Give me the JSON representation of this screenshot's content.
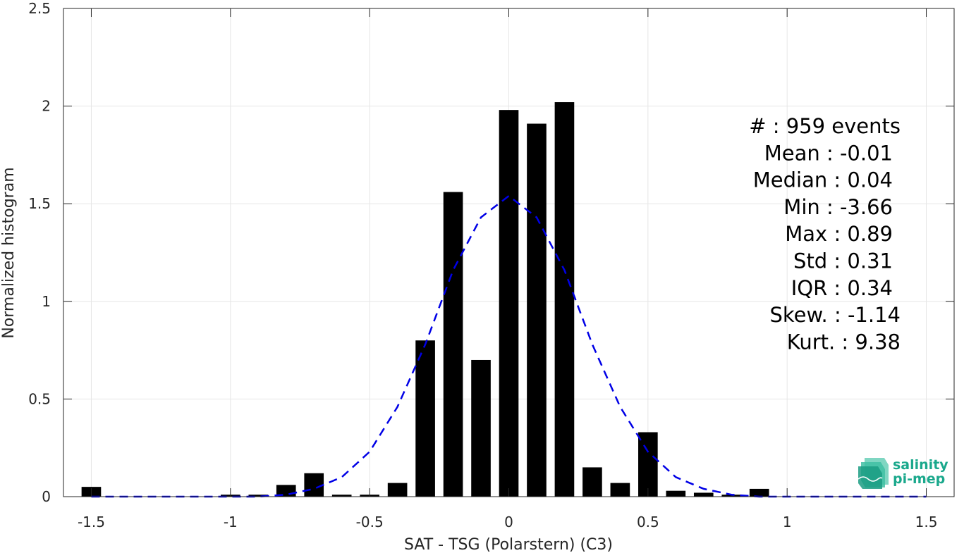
{
  "chart_data": {
    "type": "bar",
    "xlabel": "SAT - TSG (Polarstern) (C3)",
    "ylabel": "Normalized histogram",
    "xlim": [
      -1.6,
      1.6
    ],
    "ylim": [
      0,
      2.5
    ],
    "xticks": [
      -1.5,
      -1,
      -0.5,
      0,
      0.5,
      1,
      1.5
    ],
    "xtick_labels": [
      "-1.5",
      "-1",
      "-0.5",
      "0",
      "0.5",
      "1",
      "1.5"
    ],
    "yticks": [
      0,
      0.5,
      1,
      1.5,
      2,
      2.5
    ],
    "ytick_labels": [
      "0",
      "0.5",
      "1",
      "1.5",
      "2",
      "2.5"
    ],
    "grid": true,
    "bar_width": 0.07,
    "bars": [
      {
        "x": -1.5,
        "y": 0.05
      },
      {
        "x": -1.0,
        "y": 0.01
      },
      {
        "x": -0.9,
        "y": 0.01
      },
      {
        "x": -0.8,
        "y": 0.06
      },
      {
        "x": -0.7,
        "y": 0.12
      },
      {
        "x": -0.6,
        "y": 0.01
      },
      {
        "x": -0.5,
        "y": 0.01
      },
      {
        "x": -0.4,
        "y": 0.07
      },
      {
        "x": -0.3,
        "y": 0.8
      },
      {
        "x": -0.2,
        "y": 1.56
      },
      {
        "x": -0.1,
        "y": 0.7
      },
      {
        "x": 0.0,
        "y": 1.98
      },
      {
        "x": 0.1,
        "y": 1.91
      },
      {
        "x": 0.2,
        "y": 2.02
      },
      {
        "x": 0.3,
        "y": 0.15
      },
      {
        "x": 0.4,
        "y": 0.07
      },
      {
        "x": 0.5,
        "y": 0.33
      },
      {
        "x": 0.6,
        "y": 0.03
      },
      {
        "x": 0.7,
        "y": 0.02
      },
      {
        "x": 0.8,
        "y": 0.01
      },
      {
        "x": 0.9,
        "y": 0.04
      }
    ],
    "fit_curve": {
      "style": "dashed",
      "color": "#0000e6",
      "x": [
        -1.5,
        -1.4,
        -1.3,
        -1.2,
        -1.1,
        -1.0,
        -0.9,
        -0.8,
        -0.7,
        -0.6,
        -0.5,
        -0.4,
        -0.3,
        -0.2,
        -0.1,
        0.0,
        0.1,
        0.2,
        0.3,
        0.4,
        0.5,
        0.6,
        0.7,
        0.8,
        0.9,
        1.0,
        1.1,
        1.2,
        1.3,
        1.4,
        1.5
      ],
      "y": [
        0.0,
        0.0,
        0.0,
        0.0,
        0.0,
        0.0,
        0.0,
        0.01,
        0.04,
        0.1,
        0.23,
        0.46,
        0.78,
        1.16,
        1.43,
        1.54,
        1.43,
        1.16,
        0.78,
        0.46,
        0.23,
        0.1,
        0.04,
        0.01,
        0.0,
        0.0,
        0.0,
        0.0,
        0.0,
        0.0,
        0.0
      ]
    },
    "bar_color": "#000000",
    "annotations": [
      "#  : 959 events",
      "Mean : -0.01",
      "Median : 0.04",
      "Min : -3.66",
      "Max : 0.89",
      "Std : 0.31",
      "IQR : 0.34",
      "Skew. : -1.14",
      "Kurt. : 9.38"
    ]
  },
  "logo": {
    "line1": "salinity",
    "line2": "pi-mep",
    "color": "#1aa88c"
  }
}
